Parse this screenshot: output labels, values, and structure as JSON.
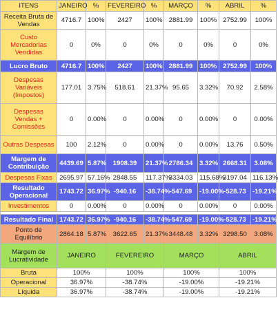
{
  "header": [
    "ITENS",
    "JANEIRO",
    "%",
    "FEVEREIRO",
    "%",
    "MARÇO",
    "%",
    "ABRIL",
    "%"
  ],
  "rows": [
    {
      "label": "Receita Bruta de Vendas",
      "values": [
        "4716.7",
        "100%",
        "2427",
        "100%",
        "2881.99",
        "100%",
        "2752.99",
        "100%"
      ]
    },
    {
      "label": "Custo Mercadorias Vendidas",
      "values": [
        "0",
        "0%",
        "0",
        "0%",
        "0",
        "0%",
        "0",
        "0%"
      ]
    },
    {
      "label": "Lucro Bruto",
      "values": [
        "4716.7",
        "100%",
        "2427",
        "100%",
        "2881.99",
        "100%",
        "2752.99",
        "100%"
      ]
    },
    {
      "label": "Despesas Variáveis (Impostos)",
      "values": [
        "177.01",
        "3.75%",
        "518.61",
        "21.37%",
        "95.65",
        "3.32%",
        "70.92",
        "2.58%"
      ]
    },
    {
      "label": "Despesas Vendas + Comissões",
      "values": [
        "0",
        "0.00%",
        "0",
        "0.00%",
        "0",
        "0.00%",
        "0",
        "0.00%"
      ]
    },
    {
      "label": "Outras Despesas",
      "values": [
        "100",
        "2.12%",
        "0",
        "0.00%",
        "0",
        "0.00%",
        "13.76",
        "0.50%"
      ]
    },
    {
      "label": "Margem de Contribuição",
      "values": [
        "4439.69",
        "5.87%",
        "1908.39",
        "21.37%",
        "2786.34",
        "3.32%",
        "2668.31",
        "3.08%"
      ]
    },
    {
      "label": "Despesas Fixas",
      "values": [
        "2695.97",
        "57.16%",
        "2848.55",
        "117.37%",
        "3334.03",
        "115.68%",
        "3197.04",
        "116.13%"
      ]
    },
    {
      "label": "Resultado Operacional",
      "values": [
        "1743.72",
        "36.97%",
        "-940.16",
        "-38.74%",
        "-547.69",
        "-19.00%",
        "-528.73",
        "-19.21%"
      ]
    },
    {
      "label": "Investimentos",
      "values": [
        "0",
        "0.00%",
        "0",
        "0.00%",
        "0",
        "0.00%",
        "0",
        "0.00%"
      ]
    },
    {
      "label": "Resultado Final",
      "values": [
        "1743.72",
        "36.97%",
        "-940.16",
        "-38.74%",
        "-547.69",
        "-19.00%",
        "-528.73",
        "-19.21%"
      ]
    },
    {
      "label": "Ponto de Equilíbrio",
      "values": [
        "2864.18",
        "5.87%",
        "3622.65",
        "21.37%",
        "3448.48",
        "3.32%",
        "3298.50",
        "3.08%"
      ]
    }
  ],
  "margin_header": {
    "label": "Margem de Lucratividade",
    "months": [
      "JANEIRO",
      "FEVEREIRO",
      "MARÇO",
      "ABRIL"
    ]
  },
  "margin_rows": [
    {
      "label": "Bruta",
      "values": [
        "100%",
        "100%",
        "100%",
        "100%"
      ]
    },
    {
      "label": "Operacional",
      "values": [
        "36.97%",
        "-38.74%",
        "-19.00%",
        "-19.21%"
      ]
    },
    {
      "label": "Líquida",
      "values": [
        "36.97%",
        "-38.74%",
        "-19.00%",
        "-19.21%"
      ]
    }
  ],
  "colors": {
    "yellow": "#ffe27a",
    "blue": "#5b63e6",
    "orange": "#f3a77c",
    "green": "#a3e05b",
    "red_text": "#e0201a"
  }
}
